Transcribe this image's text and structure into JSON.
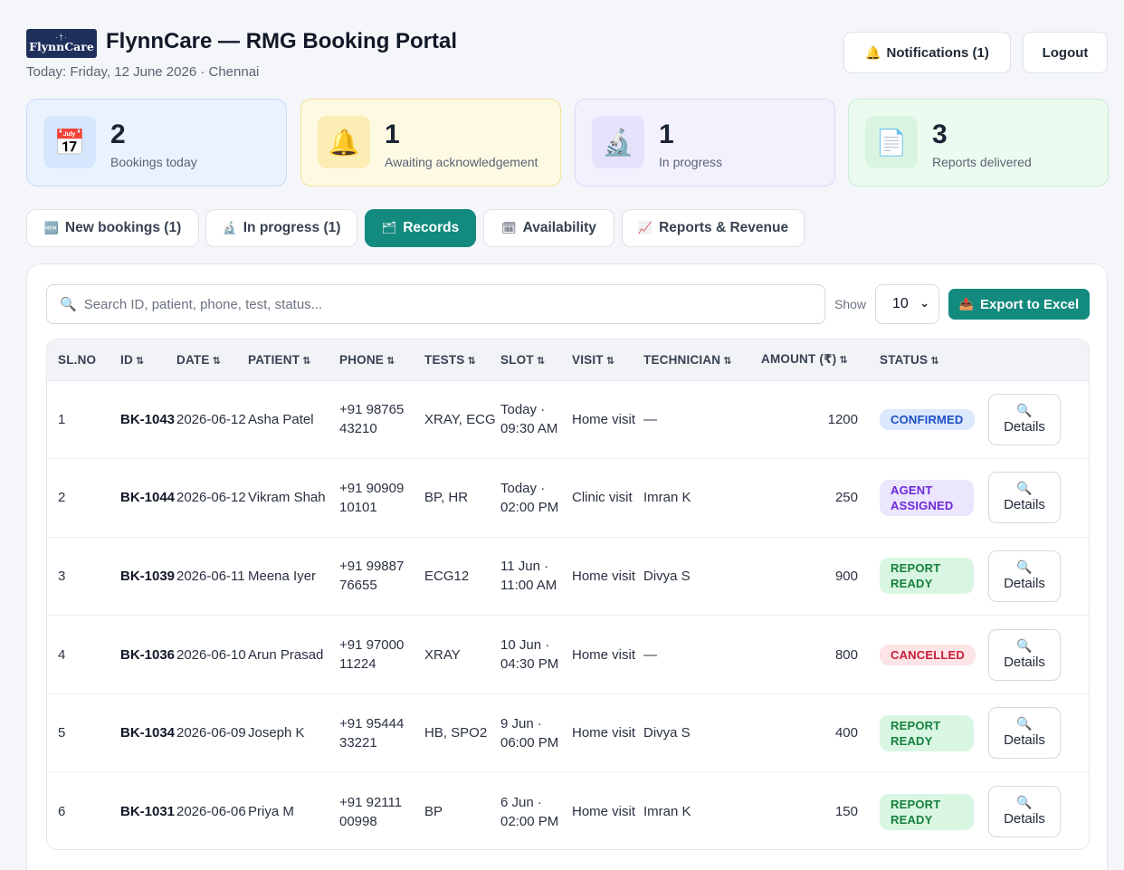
{
  "header": {
    "logo_text": "FlynnCare",
    "title": "FlynnCare — RMG Booking Portal",
    "subtitle": "Today: Friday, 12 June 2026 · Chennai",
    "notifications_label": "Notifications (1)",
    "logout_label": "Logout"
  },
  "stats": [
    {
      "value": "2",
      "label": "Bookings today",
      "icon": "calendar-icon"
    },
    {
      "value": "1",
      "label": "Awaiting acknowledgement",
      "icon": "bell-icon"
    },
    {
      "value": "1",
      "label": "In progress",
      "icon": "microscope-icon"
    },
    {
      "value": "3",
      "label": "Reports delivered",
      "icon": "document-icon"
    }
  ],
  "tabs": [
    {
      "label": "New bookings (1)",
      "icon": "new-icon"
    },
    {
      "label": "In progress (1)",
      "icon": "microscope-icon"
    },
    {
      "label": "Records",
      "icon": "folder-icon",
      "active": true
    },
    {
      "label": "Availability",
      "icon": "calendar-icon"
    },
    {
      "label": "Reports & Revenue",
      "icon": "chart-icon"
    }
  ],
  "toolbar": {
    "search_placeholder": "Search ID, patient, phone, test, status...",
    "show_label": "Show",
    "show_value": "10",
    "export_label": "Export to Excel"
  },
  "table": {
    "columns": [
      "SL.NO",
      "ID",
      "DATE",
      "PATIENT",
      "PHONE",
      "TESTS",
      "SLOT",
      "VISIT",
      "TECHNICIAN",
      "AMOUNT (₹)",
      "STATUS"
    ],
    "details_label": "Details",
    "rows": [
      {
        "sl": "1",
        "id": "BK-1043",
        "date": "2026-06-12",
        "patient": "Asha Patel",
        "phone": "+91 98765 43210",
        "tests": "XRAY, ECG",
        "slot": "Today · 09:30 AM",
        "visit": "Home visit",
        "technician": "—",
        "amount": "1200",
        "status": "CONFIRMED",
        "status_kind": "confirmed"
      },
      {
        "sl": "2",
        "id": "BK-1044",
        "date": "2026-06-12",
        "patient": "Vikram Shah",
        "phone": "+91 90909 10101",
        "tests": "BP, HR",
        "slot": "Today · 02:00 PM",
        "visit": "Clinic visit",
        "technician": "Imran K",
        "amount": "250",
        "status": "AGENT ASSIGNED",
        "status_kind": "agent"
      },
      {
        "sl": "3",
        "id": "BK-1039",
        "date": "2026-06-11",
        "patient": "Meena Iyer",
        "phone": "+91 99887 76655",
        "tests": "ECG12",
        "slot": "11 Jun · 11:00 AM",
        "visit": "Home visit",
        "technician": "Divya S",
        "amount": "900",
        "status": "REPORT READY",
        "status_kind": "ready"
      },
      {
        "sl": "4",
        "id": "BK-1036",
        "date": "2026-06-10",
        "patient": "Arun Prasad",
        "phone": "+91 97000 11224",
        "tests": "XRAY",
        "slot": "10 Jun · 04:30 PM",
        "visit": "Home visit",
        "technician": "—",
        "amount": "800",
        "status": "CANCELLED",
        "status_kind": "cancel"
      },
      {
        "sl": "5",
        "id": "BK-1034",
        "date": "2026-06-09",
        "patient": "Joseph K",
        "phone": "+91 95444 33221",
        "tests": "HB, SPO2",
        "slot": "9 Jun · 06:00 PM",
        "visit": "Home visit",
        "technician": "Divya S",
        "amount": "400",
        "status": "REPORT READY",
        "status_kind": "ready"
      },
      {
        "sl": "6",
        "id": "BK-1031",
        "date": "2026-06-06",
        "patient": "Priya M",
        "phone": "+91 92111 00998",
        "tests": "BP",
        "slot": "6 Jun · 02:00 PM",
        "visit": "Home visit",
        "technician": "Imran K",
        "amount": "150",
        "status": "REPORT READY",
        "status_kind": "ready"
      }
    ]
  },
  "colors": {
    "accent": "#138a7e",
    "brand_navy": "#1e2f5c",
    "status_confirmed": "#1d4fc4",
    "status_agent": "#6d28d9",
    "status_ready": "#16803d",
    "status_cancel": "#c81e3a"
  }
}
